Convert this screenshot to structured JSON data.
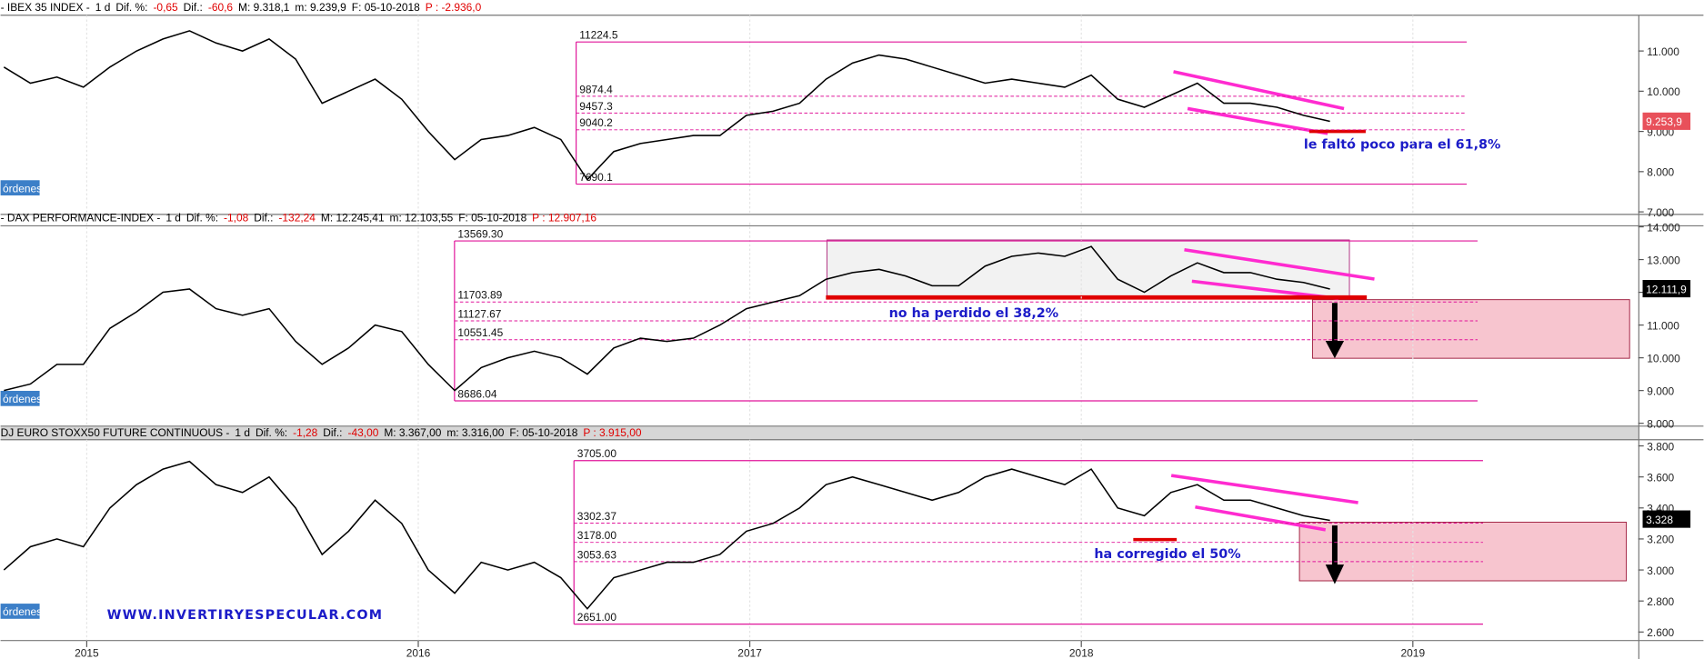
{
  "ui": {
    "orders_button": "órdenes"
  },
  "chart_data": [
    {
      "type": "line",
      "header": [
        {
          "text": "- IBEX 35 INDEX -",
          "color": "#000000"
        },
        {
          "text": "1 d",
          "color": "#000000"
        },
        {
          "text": "Dif. %:",
          "color": "#000000"
        },
        {
          "text": "-0,65",
          "color": "#e00000"
        },
        {
          "text": "Dif.:",
          "color": "#000000"
        },
        {
          "text": "-60,6",
          "color": "#e00000"
        },
        {
          "text": "M: 9.318,1",
          "color": "#000000"
        },
        {
          "text": "m: 9.239,9",
          "color": "#000000"
        },
        {
          "text": "F: 05-10-2018",
          "color": "#000000"
        },
        {
          "text": "P : -2.936,0",
          "color": "#e00000"
        }
      ],
      "x": [
        2014.75,
        2014.83,
        2014.91,
        2014.99,
        2015.07,
        2015.15,
        2015.23,
        2015.31,
        2015.39,
        2015.47,
        2015.55,
        2015.63,
        2015.71,
        2015.79,
        2015.87,
        2015.95,
        2016.03,
        2016.11,
        2016.19,
        2016.27,
        2016.35,
        2016.43,
        2016.51,
        2016.59,
        2016.67,
        2016.75,
        2016.83,
        2016.91,
        2016.99,
        2017.07,
        2017.15,
        2017.23,
        2017.31,
        2017.39,
        2017.47,
        2017.55,
        2017.63,
        2017.71,
        2017.79,
        2017.87,
        2017.95,
        2018.03,
        2018.11,
        2018.19,
        2018.27,
        2018.35,
        2018.43,
        2018.51,
        2018.59,
        2018.67,
        2018.75
      ],
      "values": [
        10600,
        10200,
        10350,
        10100,
        10600,
        11000,
        11300,
        11500,
        11200,
        11000,
        11300,
        10800,
        9700,
        10000,
        10300,
        9800,
        9000,
        8300,
        8800,
        8900,
        9100,
        8800,
        7800,
        8500,
        8700,
        8800,
        8900,
        8900,
        9400,
        9500,
        9700,
        10300,
        10700,
        10900,
        10800,
        10600,
        10400,
        10200,
        10300,
        10200,
        10100,
        10400,
        9800,
        9600,
        9900,
        10200,
        9700,
        9700,
        9600,
        9400,
        9250
      ],
      "color": "#000000",
      "xlim": [
        2014.74,
        2019.68
      ],
      "ylim": [
        6950,
        11890
      ],
      "yticks": [
        {
          "value": 7000,
          "label": "7.000"
        },
        {
          "value": 8000,
          "label": "8.000"
        },
        {
          "value": 9000,
          "label": "9.000"
        },
        {
          "value": 10000,
          "label": "10.000"
        },
        {
          "value": 11000,
          "label": "11.000"
        }
      ],
      "fib_levels": [
        11224.5,
        9874.4,
        9457.3,
        9040.2,
        7690.1
      ],
      "fib_color": "#e0159a",
      "last_price": {
        "value": 9253.9,
        "label": "9.253,9"
      },
      "last_price_color": "#e8505a",
      "annotations": [
        "le faltó poco para el 61,8%"
      ]
    },
    {
      "type": "line",
      "header": [
        {
          "text": "- DAX PERFORMANCE-INDEX -",
          "color": "#000000"
        },
        {
          "text": "1 d",
          "color": "#000000"
        },
        {
          "text": "Dif. %:",
          "color": "#000000"
        },
        {
          "text": "-1,08",
          "color": "#e00000"
        },
        {
          "text": "Dif.:",
          "color": "#000000"
        },
        {
          "text": "-132,24",
          "color": "#e00000"
        },
        {
          "text": "M: 12.245,41",
          "color": "#000000"
        },
        {
          "text": "m: 12.103,55",
          "color": "#000000"
        },
        {
          "text": "F: 05-10-2018",
          "color": "#000000"
        },
        {
          "text": "P : 12.907,16",
          "color": "#e00000"
        }
      ],
      "x": [
        2014.75,
        2014.83,
        2014.91,
        2014.99,
        2015.07,
        2015.15,
        2015.23,
        2015.31,
        2015.39,
        2015.47,
        2015.55,
        2015.63,
        2015.71,
        2015.79,
        2015.87,
        2015.95,
        2016.03,
        2016.11,
        2016.19,
        2016.27,
        2016.35,
        2016.43,
        2016.51,
        2016.59,
        2016.67,
        2016.75,
        2016.83,
        2016.91,
        2016.99,
        2017.07,
        2017.15,
        2017.23,
        2017.31,
        2017.39,
        2017.47,
        2017.55,
        2017.63,
        2017.71,
        2017.79,
        2017.87,
        2017.95,
        2018.03,
        2018.11,
        2018.19,
        2018.27,
        2018.35,
        2018.43,
        2018.51,
        2018.59,
        2018.67,
        2018.75
      ],
      "values": [
        9000,
        9200,
        9800,
        9800,
        10900,
        11400,
        12000,
        12100,
        11500,
        11300,
        11500,
        10500,
        9800,
        10300,
        11000,
        10800,
        9800,
        9000,
        9700,
        10000,
        10200,
        10000,
        9500,
        10300,
        10600,
        10500,
        10600,
        11000,
        11500,
        11700,
        11900,
        12400,
        12600,
        12700,
        12500,
        12200,
        12200,
        12800,
        13100,
        13200,
        13100,
        13400,
        12400,
        12000,
        12500,
        12900,
        12600,
        12600,
        12400,
        12300,
        12100
      ],
      "color": "#000000",
      "xlim": [
        2014.74,
        2019.68
      ],
      "ylim": [
        7930,
        14130
      ],
      "yticks": [
        {
          "value": 8000,
          "label": "8.000"
        },
        {
          "value": 9000,
          "label": "9.000"
        },
        {
          "value": 10000,
          "label": "10.000"
        },
        {
          "value": 11000,
          "label": "11.000"
        },
        {
          "value": 12000,
          "label": "12.000"
        },
        {
          "value": 13000,
          "label": "13.000"
        },
        {
          "value": 14000,
          "label": "14.000"
        }
      ],
      "fib_levels": [
        {
          "value": 13569.3,
          "label": "13569.30"
        },
        11703.89,
        11127.67,
        10551.45,
        8686.04
      ],
      "fib_color": "#e0159a",
      "last_price": {
        "value": 12111.9,
        "label": "12.111,9"
      },
      "last_price_color": "#000000",
      "annotations": [
        "no ha perdido el 38,2%"
      ]
    },
    {
      "type": "line",
      "header": [
        {
          "text": "DJ EURO STOXX50 FUTURE CONTINUOUS -",
          "color": "#000000"
        },
        {
          "text": "1 d",
          "color": "#000000"
        },
        {
          "text": "Dif. %:",
          "color": "#000000"
        },
        {
          "text": "-1,28",
          "color": "#e00000"
        },
        {
          "text": "Dif.:",
          "color": "#000000"
        },
        {
          "text": "-43,00",
          "color": "#e00000"
        },
        {
          "text": "M: 3.367,00",
          "color": "#000000"
        },
        {
          "text": "m: 3.316,00",
          "color": "#000000"
        },
        {
          "text": "F: 05-10-2018",
          "color": "#000000"
        },
        {
          "text": "P : 3.915,00",
          "color": "#e00000"
        }
      ],
      "x": [
        2014.75,
        2014.83,
        2014.91,
        2014.99,
        2015.07,
        2015.15,
        2015.23,
        2015.31,
        2015.39,
        2015.47,
        2015.55,
        2015.63,
        2015.71,
        2015.79,
        2015.87,
        2015.95,
        2016.03,
        2016.11,
        2016.19,
        2016.27,
        2016.35,
        2016.43,
        2016.51,
        2016.59,
        2016.67,
        2016.75,
        2016.83,
        2016.91,
        2016.99,
        2017.07,
        2017.15,
        2017.23,
        2017.31,
        2017.39,
        2017.47,
        2017.55,
        2017.63,
        2017.71,
        2017.79,
        2017.87,
        2017.95,
        2018.03,
        2018.11,
        2018.19,
        2018.27,
        2018.35,
        2018.43,
        2018.51,
        2018.59,
        2018.67,
        2018.75
      ],
      "values": [
        3000,
        3150,
        3200,
        3150,
        3400,
        3550,
        3650,
        3700,
        3550,
        3500,
        3600,
        3400,
        3100,
        3250,
        3450,
        3300,
        3000,
        2850,
        3050,
        3000,
        3050,
        2950,
        2750,
        2950,
        3000,
        3050,
        3050,
        3100,
        3250,
        3300,
        3400,
        3550,
        3600,
        3550,
        3500,
        3450,
        3500,
        3600,
        3650,
        3600,
        3550,
        3650,
        3400,
        3350,
        3500,
        3550,
        3450,
        3450,
        3400,
        3350,
        3320
      ],
      "color": "#000000",
      "xlim": [
        2014.74,
        2019.68
      ],
      "ylim": [
        2545,
        3840
      ],
      "yticks": [
        {
          "value": 2600,
          "label": "2.600"
        },
        {
          "value": 2800,
          "label": "2.800"
        },
        {
          "value": 3000,
          "label": "3.000"
        },
        {
          "value": 3200,
          "label": "3.200"
        },
        {
          "value": 3400,
          "label": "3.400"
        },
        {
          "value": 3600,
          "label": "3.600"
        },
        {
          "value": 3800,
          "label": "3.800"
        }
      ],
      "xticks": [
        2015,
        2016,
        2017,
        2018,
        2019
      ],
      "fib_levels": [
        {
          "value": 3705,
          "label": "3705.00"
        },
        3302.37,
        {
          "value": 3178,
          "label": "3178.00"
        },
        3053.63,
        {
          "value": 2651,
          "label": "2651.00"
        }
      ],
      "fib_color": "#e0159a",
      "last_price": {
        "value": 3328,
        "label": "3.328"
      },
      "last_price_color": "#000000",
      "annotations": [
        "ha corregido el 50%",
        "WWW.INVERTIRYESPECULAR.COM"
      ]
    }
  ]
}
